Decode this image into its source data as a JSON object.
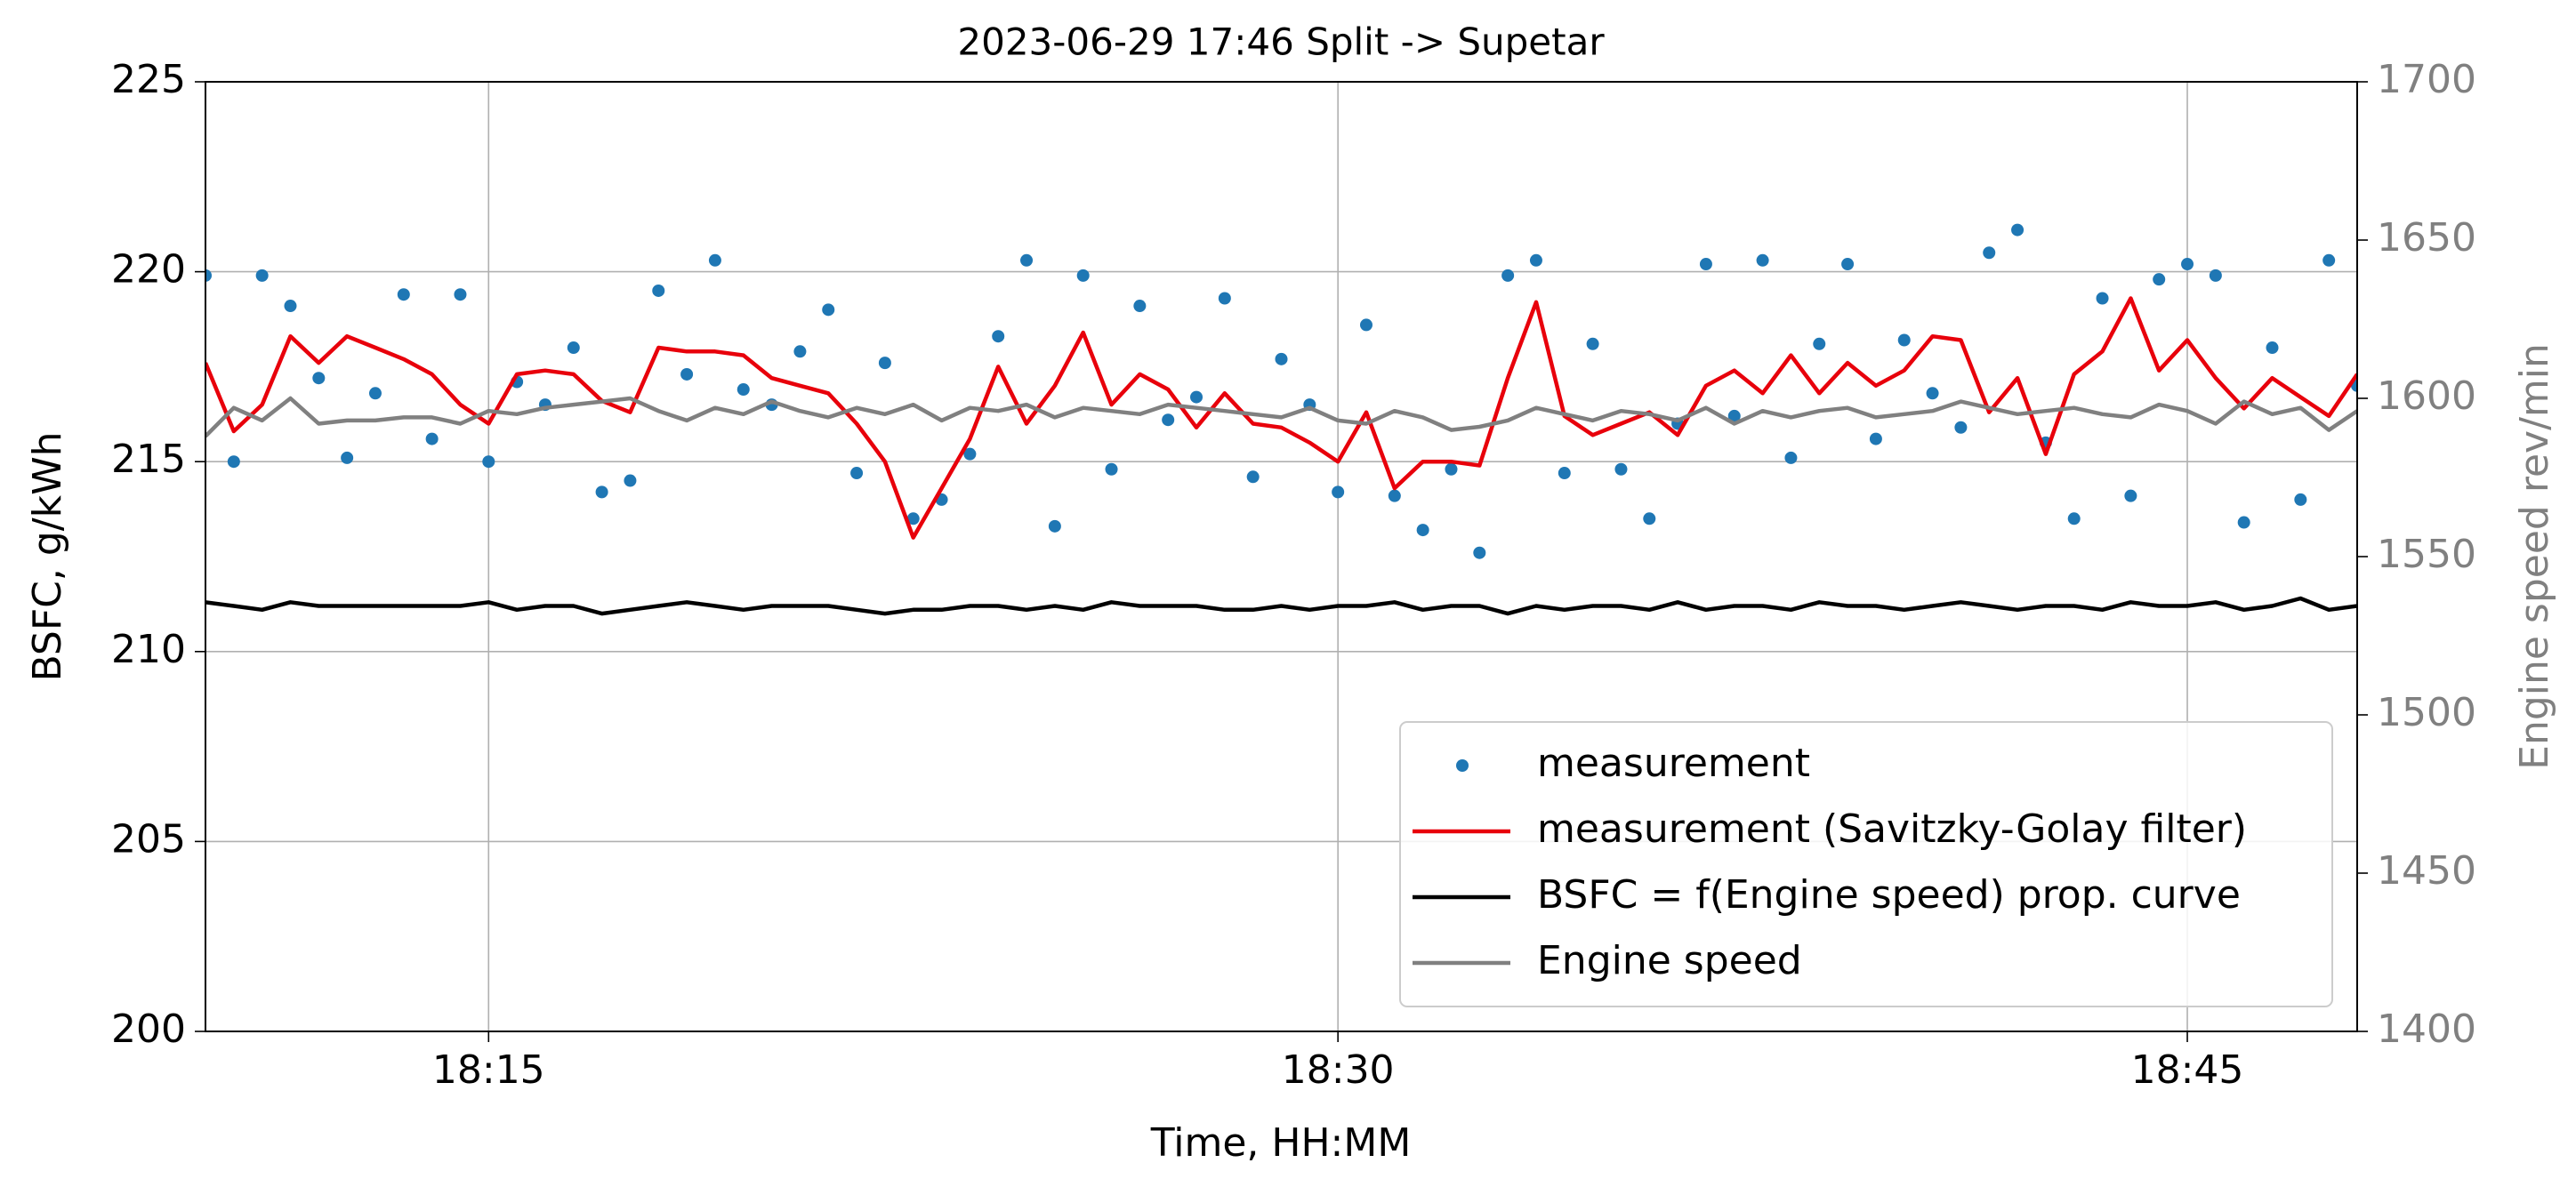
{
  "chart_data": {
    "type": "line",
    "title": "2023-06-29  17:46 Split -> Supetar",
    "x_label": "Time, HH:MM",
    "y_label": "BSFC, g/kWh",
    "y2_label": "Engine speed rev/min",
    "xlim": [
      "18:10:00",
      "18:48:00"
    ],
    "xticks": [
      "18:15",
      "18:30",
      "18:45"
    ],
    "ylim": [
      200,
      225
    ],
    "yticks": [
      200,
      205,
      210,
      215,
      220,
      225
    ],
    "y2lim": [
      1400,
      1700
    ],
    "y2ticks": [
      1400,
      1450,
      1500,
      1550,
      1600,
      1650,
      1700
    ],
    "grid": true,
    "legend": "lower right",
    "x": [
      "18:10:00",
      "18:10:30",
      "18:11:00",
      "18:11:30",
      "18:12:00",
      "18:12:30",
      "18:13:00",
      "18:13:30",
      "18:14:00",
      "18:14:30",
      "18:15:00",
      "18:15:30",
      "18:16:00",
      "18:16:30",
      "18:17:00",
      "18:17:30",
      "18:18:00",
      "18:18:30",
      "18:19:00",
      "18:19:30",
      "18:20:00",
      "18:20:30",
      "18:21:00",
      "18:21:30",
      "18:22:00",
      "18:22:30",
      "18:23:00",
      "18:23:30",
      "18:24:00",
      "18:24:30",
      "18:25:00",
      "18:25:30",
      "18:26:00",
      "18:26:30",
      "18:27:00",
      "18:27:30",
      "18:28:00",
      "18:28:30",
      "18:29:00",
      "18:29:30",
      "18:30:00",
      "18:30:30",
      "18:31:00",
      "18:31:30",
      "18:32:00",
      "18:32:30",
      "18:33:00",
      "18:33:30",
      "18:34:00",
      "18:34:30",
      "18:35:00",
      "18:35:30",
      "18:36:00",
      "18:36:30",
      "18:37:00",
      "18:37:30",
      "18:38:00",
      "18:38:30",
      "18:39:00",
      "18:39:30",
      "18:40:00",
      "18:40:30",
      "18:41:00",
      "18:41:30",
      "18:42:00",
      "18:42:30",
      "18:43:00",
      "18:43:30",
      "18:44:00",
      "18:44:30",
      "18:45:00",
      "18:45:30",
      "18:46:00",
      "18:46:30",
      "18:47:00",
      "18:47:30",
      "18:48:00"
    ],
    "series": [
      {
        "name": "measurement",
        "type": "scatter",
        "color": "#1f77b4",
        "values": [
          219.9,
          215.0,
          219.9,
          219.1,
          217.2,
          215.1,
          216.8,
          219.4,
          215.6,
          219.4,
          215.0,
          217.1,
          216.5,
          218.0,
          214.2,
          214.5,
          219.5,
          217.3,
          220.3,
          216.9,
          216.5,
          217.9,
          219.0,
          214.7,
          217.6,
          213.5,
          214.0,
          215.2,
          218.3,
          220.3,
          213.3,
          219.9,
          214.8,
          219.1,
          216.1,
          216.7,
          219.3,
          214.6,
          217.7,
          216.5,
          214.2,
          218.6,
          214.1,
          213.2,
          214.8,
          212.6,
          219.9,
          220.3,
          214.7,
          218.1,
          214.8,
          213.5,
          216.0,
          220.2,
          216.2,
          220.3,
          215.1,
          218.1,
          220.2,
          215.6,
          218.2,
          216.8,
          215.9,
          220.5,
          221.1,
          215.5,
          213.5,
          219.3,
          214.1,
          219.8,
          220.2,
          219.9,
          213.4,
          218.0,
          214.0,
          220.3,
          217.0
        ]
      },
      {
        "name": "measurement (Savitzky-Golay filter)",
        "type": "line",
        "color": "#e8000b",
        "values": [
          217.6,
          215.8,
          216.5,
          218.3,
          217.6,
          218.3,
          218.0,
          217.7,
          217.3,
          216.5,
          216.0,
          217.3,
          217.4,
          217.3,
          216.6,
          216.3,
          218.0,
          217.9,
          217.9,
          217.8,
          217.2,
          217.0,
          216.8,
          216.0,
          215.0,
          213.0,
          214.3,
          215.6,
          217.5,
          216.0,
          217.0,
          218.4,
          216.5,
          217.3,
          216.9,
          215.9,
          216.8,
          216.0,
          215.9,
          215.5,
          215.0,
          216.3,
          214.3,
          215.0,
          215.0,
          214.9,
          217.2,
          219.2,
          216.2,
          215.7,
          216.0,
          216.3,
          215.7,
          217.0,
          217.4,
          216.8,
          217.8,
          216.8,
          217.6,
          217.0,
          217.4,
          218.3,
          218.2,
          216.3,
          217.2,
          215.2,
          217.3,
          217.9,
          219.3,
          217.4,
          218.2,
          217.2,
          216.4,
          217.2,
          216.7,
          216.2,
          217.3
        ]
      },
      {
        "name": "BSFC = f(Engine speed) prop. curve",
        "type": "line",
        "color": "#000000",
        "values": [
          211.3,
          211.2,
          211.1,
          211.3,
          211.2,
          211.2,
          211.2,
          211.2,
          211.2,
          211.2,
          211.3,
          211.1,
          211.2,
          211.2,
          211.0,
          211.1,
          211.2,
          211.3,
          211.2,
          211.1,
          211.2,
          211.2,
          211.2,
          211.1,
          211.0,
          211.1,
          211.1,
          211.2,
          211.2,
          211.1,
          211.2,
          211.1,
          211.3,
          211.2,
          211.2,
          211.2,
          211.1,
          211.1,
          211.2,
          211.1,
          211.2,
          211.2,
          211.3,
          211.1,
          211.2,
          211.2,
          211.0,
          211.2,
          211.1,
          211.2,
          211.2,
          211.1,
          211.3,
          211.1,
          211.2,
          211.2,
          211.1,
          211.3,
          211.2,
          211.2,
          211.1,
          211.2,
          211.3,
          211.2,
          211.1,
          211.2,
          211.2,
          211.1,
          211.3,
          211.2,
          211.2,
          211.3,
          211.1,
          211.2,
          211.4,
          211.1,
          211.2
        ]
      },
      {
        "name": "Engine speed",
        "type": "line",
        "axis": "y2",
        "color": "#808080",
        "values": [
          1588,
          1597,
          1593,
          1600,
          1592,
          1593,
          1593,
          1594,
          1594,
          1592,
          1596,
          1595,
          1597,
          1598,
          1599,
          1600,
          1596,
          1593,
          1597,
          1595,
          1599,
          1596,
          1594,
          1597,
          1595,
          1598,
          1593,
          1597,
          1596,
          1598,
          1594,
          1597,
          1596,
          1595,
          1598,
          1597,
          1596,
          1595,
          1594,
          1597,
          1593,
          1592,
          1596,
          1594,
          1590,
          1591,
          1593,
          1597,
          1595,
          1593,
          1596,
          1595,
          1593,
          1597,
          1592,
          1596,
          1594,
          1596,
          1597,
          1594,
          1595,
          1596,
          1599,
          1597,
          1595,
          1596,
          1597,
          1595,
          1594,
          1598,
          1596,
          1592,
          1599,
          1595,
          1597,
          1590,
          1596
        ]
      }
    ]
  }
}
